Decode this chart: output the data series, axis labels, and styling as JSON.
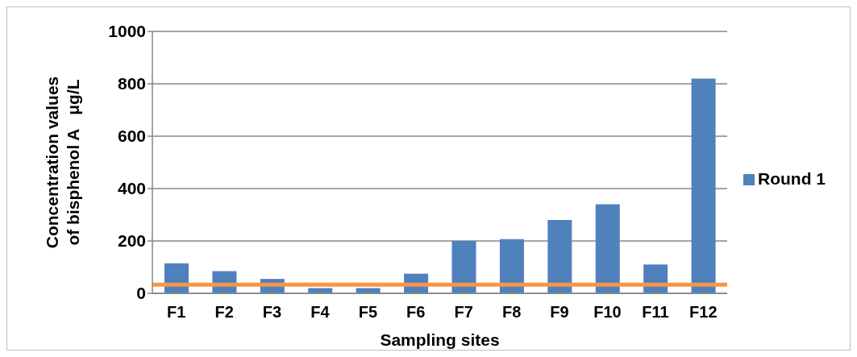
{
  "chart_data": {
    "type": "bar",
    "xlabel": "Sampling sites",
    "ylabel": "Concentration values of bisphenol A   μg/L",
    "categories": [
      "F1",
      "F2",
      "F3",
      "F4",
      "F5",
      "F6",
      "F7",
      "F8",
      "F9",
      "F10",
      "F11",
      "F12"
    ],
    "series": [
      {
        "name": "Round 1",
        "color": "#4f81bd",
        "values": [
          115,
          85,
          55,
          20,
          20,
          75,
          200,
          207,
          280,
          340,
          110,
          820
        ]
      }
    ],
    "ylim": [
      0,
      1000
    ],
    "yticks": [
      0,
      200,
      400,
      600,
      800,
      1000
    ],
    "grid": "y",
    "legend": "right",
    "ref_lines": [
      {
        "axis": "y",
        "value": 33,
        "color": "#f79646"
      }
    ]
  }
}
